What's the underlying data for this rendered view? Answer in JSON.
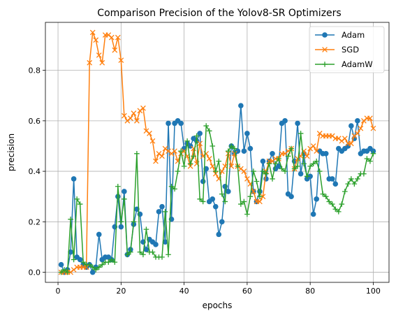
{
  "chart_data": {
    "type": "line",
    "title": "Comparison Precision of the Yolov8-SR Optimizers",
    "xlabel": "epochs",
    "ylabel": "precision",
    "xlim": [
      -4,
      105
    ],
    "ylim": [
      -0.04,
      0.99
    ],
    "x_ticks": [
      0,
      20,
      40,
      60,
      80,
      100
    ],
    "y_ticks": [
      0.0,
      0.2,
      0.4,
      0.6,
      0.8
    ],
    "y_tick_labels": [
      "0.0",
      "0.2",
      "0.4",
      "0.6",
      "0.8"
    ],
    "grid": true,
    "legend_position": "top-right",
    "x": [
      1,
      2,
      3,
      4,
      5,
      6,
      7,
      8,
      9,
      10,
      11,
      12,
      13,
      14,
      15,
      16,
      17,
      18,
      19,
      20,
      21,
      22,
      23,
      24,
      25,
      26,
      27,
      28,
      29,
      30,
      31,
      32,
      33,
      34,
      35,
      36,
      37,
      38,
      39,
      40,
      41,
      42,
      43,
      44,
      45,
      46,
      47,
      48,
      49,
      50,
      51,
      52,
      53,
      54,
      55,
      56,
      57,
      58,
      59,
      60,
      61,
      62,
      63,
      64,
      65,
      66,
      67,
      68,
      69,
      70,
      71,
      72,
      73,
      74,
      75,
      76,
      77,
      78,
      79,
      80,
      81,
      82,
      83,
      84,
      85,
      86,
      87,
      88,
      89,
      90,
      91,
      92,
      93,
      94,
      95,
      96,
      97,
      98,
      99,
      100
    ],
    "series": [
      {
        "name": "Adam",
        "color": "#1f77b4",
        "marker": "circle",
        "values": [
          0.03,
          0.0,
          0.01,
          0.08,
          0.37,
          0.06,
          0.05,
          0.03,
          0.02,
          0.03,
          0.0,
          0.02,
          0.15,
          0.05,
          0.06,
          0.06,
          0.05,
          0.18,
          0.3,
          0.18,
          0.32,
          0.07,
          0.09,
          0.19,
          0.25,
          0.23,
          0.12,
          0.09,
          0.13,
          0.12,
          0.11,
          0.24,
          0.26,
          0.12,
          0.59,
          0.21,
          0.59,
          0.6,
          0.59,
          0.49,
          0.51,
          0.5,
          0.53,
          0.52,
          0.55,
          0.36,
          0.41,
          0.28,
          0.29,
          0.26,
          0.15,
          0.2,
          0.34,
          0.32,
          0.5,
          0.47,
          0.48,
          0.66,
          0.48,
          0.55,
          0.49,
          0.32,
          0.28,
          0.32,
          0.44,
          0.37,
          0.44,
          0.47,
          0.41,
          0.42,
          0.59,
          0.6,
          0.31,
          0.3,
          0.44,
          0.59,
          0.39,
          0.47,
          0.37,
          0.38,
          0.23,
          0.29,
          0.48,
          0.47,
          0.47,
          0.37,
          0.37,
          0.35,
          0.49,
          0.48,
          0.49,
          0.5,
          0.58,
          0.53,
          0.6,
          0.47,
          0.48,
          0.48,
          0.49,
          0.48
        ]
      },
      {
        "name": "SGD",
        "color": "#ff7f0e",
        "marker": "x",
        "values": [
          0.0,
          0.0,
          0.0,
          0.0,
          0.01,
          0.02,
          0.02,
          0.02,
          0.02,
          0.83,
          0.95,
          0.92,
          0.86,
          0.83,
          0.94,
          0.94,
          0.93,
          0.88,
          0.93,
          0.84,
          0.62,
          0.6,
          0.61,
          0.63,
          0.6,
          0.64,
          0.65,
          0.56,
          0.55,
          0.52,
          0.44,
          0.47,
          0.46,
          0.49,
          0.48,
          0.47,
          0.48,
          0.44,
          0.47,
          0.48,
          0.46,
          0.42,
          0.49,
          0.43,
          0.51,
          0.46,
          0.47,
          0.45,
          0.42,
          0.39,
          0.37,
          0.4,
          0.42,
          0.47,
          0.42,
          0.47,
          0.42,
          0.41,
          0.4,
          0.37,
          0.35,
          0.32,
          0.28,
          0.28,
          0.3,
          0.4,
          0.44,
          0.44,
          0.45,
          0.45,
          0.47,
          0.47,
          0.48,
          0.49,
          0.41,
          0.45,
          0.46,
          0.48,
          0.46,
          0.49,
          0.5,
          0.48,
          0.55,
          0.54,
          0.54,
          0.54,
          0.54,
          0.53,
          0.53,
          0.52,
          0.53,
          0.51,
          0.51,
          0.54,
          0.55,
          0.57,
          0.6,
          0.61,
          0.61,
          0.57
        ]
      },
      {
        "name": "AdamW",
        "color": "#2ca02c",
        "marker": "plus",
        "values": [
          0.0,
          0.01,
          0.0,
          0.21,
          0.05,
          0.29,
          0.27,
          0.04,
          0.03,
          0.03,
          0.02,
          0.01,
          0.02,
          0.03,
          0.04,
          0.04,
          0.05,
          0.04,
          0.34,
          0.2,
          0.29,
          0.07,
          0.08,
          0.2,
          0.47,
          0.08,
          0.07,
          0.17,
          0.08,
          0.08,
          0.06,
          0.06,
          0.06,
          0.24,
          0.07,
          0.34,
          0.33,
          0.4,
          0.48,
          0.42,
          0.52,
          0.43,
          0.46,
          0.54,
          0.29,
          0.28,
          0.58,
          0.56,
          0.5,
          0.4,
          0.44,
          0.31,
          0.28,
          0.48,
          0.5,
          0.49,
          0.42,
          0.27,
          0.28,
          0.23,
          0.3,
          0.4,
          0.36,
          0.3,
          0.4,
          0.39,
          0.43,
          0.37,
          0.43,
          0.45,
          0.41,
          0.4,
          0.46,
          0.49,
          0.41,
          0.42,
          0.55,
          0.43,
          0.38,
          0.42,
          0.43,
          0.44,
          0.4,
          0.31,
          0.3,
          0.28,
          0.27,
          0.25,
          0.24,
          0.27,
          0.32,
          0.35,
          0.37,
          0.35,
          0.37,
          0.39,
          0.39,
          0.45,
          0.44,
          0.47
        ]
      }
    ]
  }
}
